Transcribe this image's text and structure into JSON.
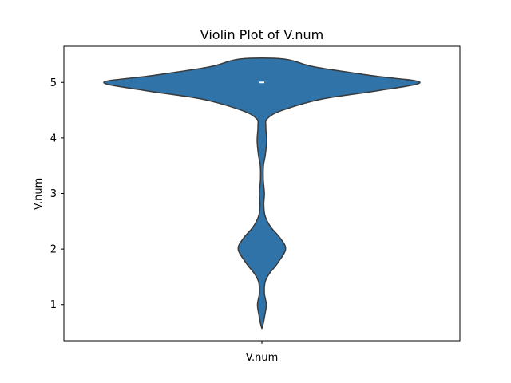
{
  "chart_data": {
    "type": "violin",
    "title": "Violin Plot of V.num",
    "xlabel": "",
    "ylabel": "V.num",
    "categories": [
      "V.num"
    ],
    "ylim": [
      0.35,
      5.65
    ],
    "yticks": [
      1,
      2,
      3,
      4,
      5
    ],
    "grid": false,
    "fill_color": "#2f73a8",
    "edge_color": "#3a3a3a",
    "median": 5,
    "density_profile": [
      {
        "y": 0.57,
        "w": 0.0
      },
      {
        "y": 0.65,
        "w": 0.008
      },
      {
        "y": 0.8,
        "w": 0.018
      },
      {
        "y": 1.0,
        "w": 0.028
      },
      {
        "y": 1.2,
        "w": 0.016
      },
      {
        "y": 1.4,
        "w": 0.02
      },
      {
        "y": 1.55,
        "w": 0.045
      },
      {
        "y": 1.75,
        "w": 0.1
      },
      {
        "y": 2.0,
        "w": 0.15
      },
      {
        "y": 2.2,
        "w": 0.115
      },
      {
        "y": 2.4,
        "w": 0.055
      },
      {
        "y": 2.6,
        "w": 0.02
      },
      {
        "y": 2.8,
        "w": 0.012
      },
      {
        "y": 3.0,
        "w": 0.016
      },
      {
        "y": 3.25,
        "w": 0.009
      },
      {
        "y": 3.5,
        "w": 0.01
      },
      {
        "y": 3.7,
        "w": 0.022
      },
      {
        "y": 3.95,
        "w": 0.03
      },
      {
        "y": 4.2,
        "w": 0.025
      },
      {
        "y": 4.35,
        "w": 0.035
      },
      {
        "y": 4.5,
        "w": 0.13
      },
      {
        "y": 4.7,
        "w": 0.38
      },
      {
        "y": 4.85,
        "w": 0.73
      },
      {
        "y": 5.0,
        "w": 1.0
      },
      {
        "y": 5.12,
        "w": 0.7
      },
      {
        "y": 5.28,
        "w": 0.33
      },
      {
        "y": 5.42,
        "w": 0.14
      }
    ]
  }
}
